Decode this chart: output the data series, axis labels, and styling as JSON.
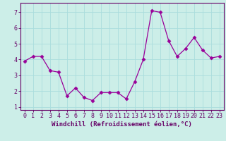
{
  "x": [
    0,
    1,
    2,
    3,
    4,
    5,
    6,
    7,
    8,
    9,
    10,
    11,
    12,
    13,
    14,
    15,
    16,
    17,
    18,
    19,
    20,
    21,
    22,
    23
  ],
  "y": [
    3.9,
    4.2,
    4.2,
    3.3,
    3.2,
    1.7,
    2.2,
    1.6,
    1.4,
    1.9,
    1.9,
    1.9,
    1.5,
    2.6,
    4.0,
    7.1,
    7.0,
    5.2,
    4.2,
    4.7,
    5.4,
    4.6,
    4.1,
    4.2
  ],
  "line_color": "#990099",
  "marker": "D",
  "marker_size": 2.5,
  "bg_color": "#cceee8",
  "grid_color": "#aadddd",
  "axis_color": "#660066",
  "spine_color": "#660066",
  "xlabel": "Windchill (Refroidissement éolien,°C)",
  "xlim": [
    -0.5,
    23.5
  ],
  "ylim": [
    0.8,
    7.6
  ],
  "yticks": [
    1,
    2,
    3,
    4,
    5,
    6,
    7
  ],
  "xticks": [
    0,
    1,
    2,
    3,
    4,
    5,
    6,
    7,
    8,
    9,
    10,
    11,
    12,
    13,
    14,
    15,
    16,
    17,
    18,
    19,
    20,
    21,
    22,
    23
  ],
  "xlabel_fontsize": 6.5,
  "tick_fontsize": 6.0
}
